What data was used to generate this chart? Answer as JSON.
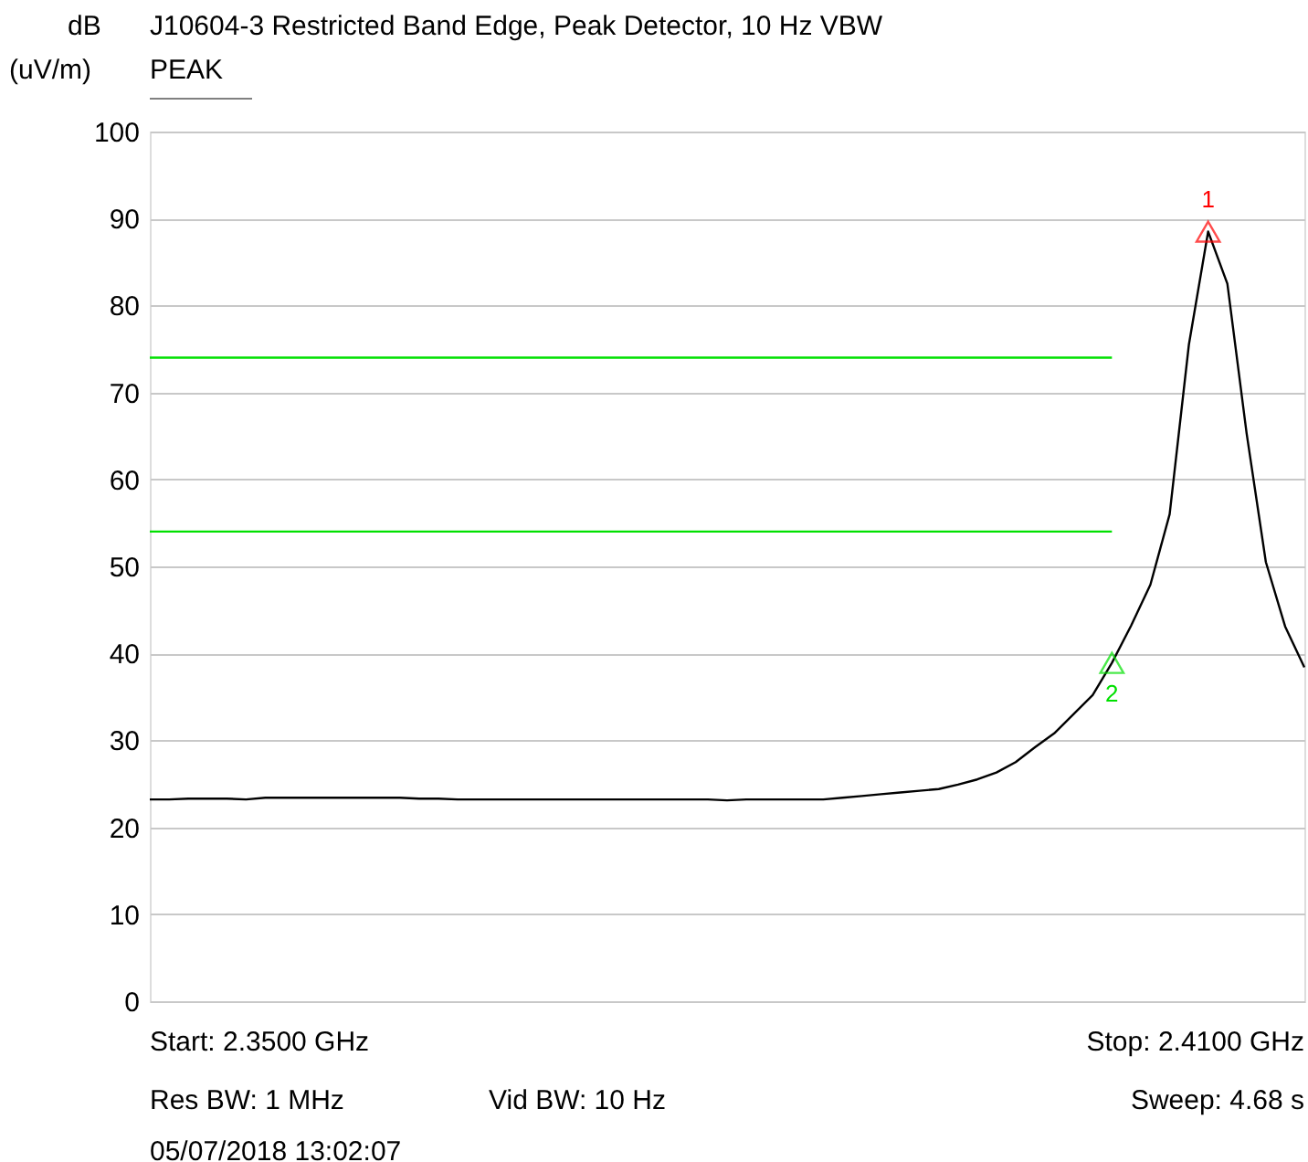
{
  "chart_data": {
    "type": "line",
    "title": "J10604-3 Restricted Band Edge, Peak Detector, 10 Hz VBW",
    "subtitle": "PEAK",
    "ylabel": "dB\n(uV/m)",
    "categories": [
      null,
      null,
      null,
      null,
      null,
      null,
      null,
      null,
      null,
      null,
      null,
      null,
      null,
      null,
      null,
      null,
      null,
      null,
      null,
      null,
      null,
      null,
      null,
      null,
      null,
      null,
      null,
      null,
      null,
      null,
      null,
      null,
      null,
      null,
      null,
      null,
      null,
      null,
      null,
      null,
      null,
      null,
      null,
      null,
      null,
      null,
      null,
      null,
      null,
      null,
      null,
      null,
      null,
      null,
      null,
      null,
      null,
      null,
      null,
      null,
      null
    ],
    "ylim": [
      0,
      100
    ],
    "yticks": [
      0,
      10,
      20,
      30,
      40,
      50,
      60,
      70,
      80,
      90,
      100
    ],
    "grid": "y",
    "marker": "none",
    "line_style": "solid",
    "series": [
      {
        "color": "#000000",
        "values": [
          23.2,
          23.2,
          23.3,
          23.3,
          23.3,
          23.2,
          23.4,
          23.4,
          23.4,
          23.4,
          23.4,
          23.4,
          23.4,
          23.4,
          23.3,
          23.3,
          23.2,
          23.2,
          23.2,
          23.2,
          23.2,
          23.2,
          23.2,
          23.2,
          23.2,
          23.2,
          23.2,
          23.2,
          23.2,
          23.2,
          23.1,
          23.2,
          23.2,
          23.2,
          23.2,
          23.2,
          23.4,
          23.6,
          23.8,
          24.0,
          24.2,
          24.4,
          24.9,
          25.5,
          26.3,
          27.5,
          29.2,
          30.8,
          33.0,
          35.2,
          38.9,
          43.2,
          47.9,
          56.0,
          75.5,
          88.5,
          82.5,
          65.3,
          50.5,
          43.1,
          38.4
        ]
      },
      {
        "color": "#00e000",
        "values": [
          74,
          74,
          74,
          74,
          74,
          74,
          74,
          74,
          74,
          74,
          74,
          74,
          74,
          74,
          74,
          74,
          74,
          74,
          74,
          74,
          74,
          74,
          74,
          74,
          74,
          74,
          74,
          74,
          74,
          74,
          74,
          74,
          74,
          74,
          74,
          74,
          74,
          74,
          74,
          74,
          74,
          74,
          74,
          74,
          74,
          74,
          74,
          74,
          74,
          74,
          74,
          null,
          null,
          null,
          null,
          null,
          null,
          null,
          null,
          null,
          null
        ]
      },
      {
        "color": "#00e000",
        "values": [
          54,
          54,
          54,
          54,
          54,
          54,
          54,
          54,
          54,
          54,
          54,
          54,
          54,
          54,
          54,
          54,
          54,
          54,
          54,
          54,
          54,
          54,
          54,
          54,
          54,
          54,
          54,
          54,
          54,
          54,
          54,
          54,
          54,
          54,
          54,
          54,
          54,
          54,
          54,
          54,
          54,
          54,
          54,
          54,
          54,
          54,
          54,
          54,
          54,
          54,
          54,
          null,
          null,
          null,
          null,
          null,
          null,
          null,
          null,
          null,
          null
        ]
      },
      {
        "type": "scatter",
        "name": "1",
        "marker": "triangle",
        "color": "#ff0000",
        "values": [
          null,
          null,
          null,
          null,
          null,
          null,
          null,
          null,
          null,
          null,
          null,
          null,
          null,
          null,
          null,
          null,
          null,
          null,
          null,
          null,
          null,
          null,
          null,
          null,
          null,
          null,
          null,
          null,
          null,
          null,
          null,
          null,
          null,
          null,
          null,
          null,
          null,
          null,
          null,
          null,
          null,
          null,
          null,
          null,
          null,
          null,
          null,
          null,
          null,
          null,
          null,
          null,
          null,
          null,
          null,
          88.5,
          null,
          null,
          null,
          null,
          null
        ]
      },
      {
        "type": "scatter",
        "name": "2",
        "marker": "triangle",
        "color": "#00e000",
        "values": [
          null,
          null,
          null,
          null,
          null,
          null,
          null,
          null,
          null,
          null,
          null,
          null,
          null,
          null,
          null,
          null,
          null,
          null,
          null,
          null,
          null,
          null,
          null,
          null,
          null,
          null,
          null,
          null,
          null,
          null,
          null,
          null,
          null,
          null,
          null,
          null,
          null,
          null,
          null,
          null,
          null,
          null,
          null,
          null,
          null,
          null,
          null,
          null,
          null,
          null,
          38.9,
          null,
          null,
          null,
          null,
          null,
          null,
          null,
          null,
          null,
          null
        ]
      }
    ],
    "annotations": [
      "Start: 2.3500 GHz",
      "Stop: 2.4100 GHz",
      "Res BW: 1 MHz",
      "Vid BW: 10 Hz",
      "Sweep: 4.68 s",
      "05/07/2018 13:02:07"
    ]
  }
}
